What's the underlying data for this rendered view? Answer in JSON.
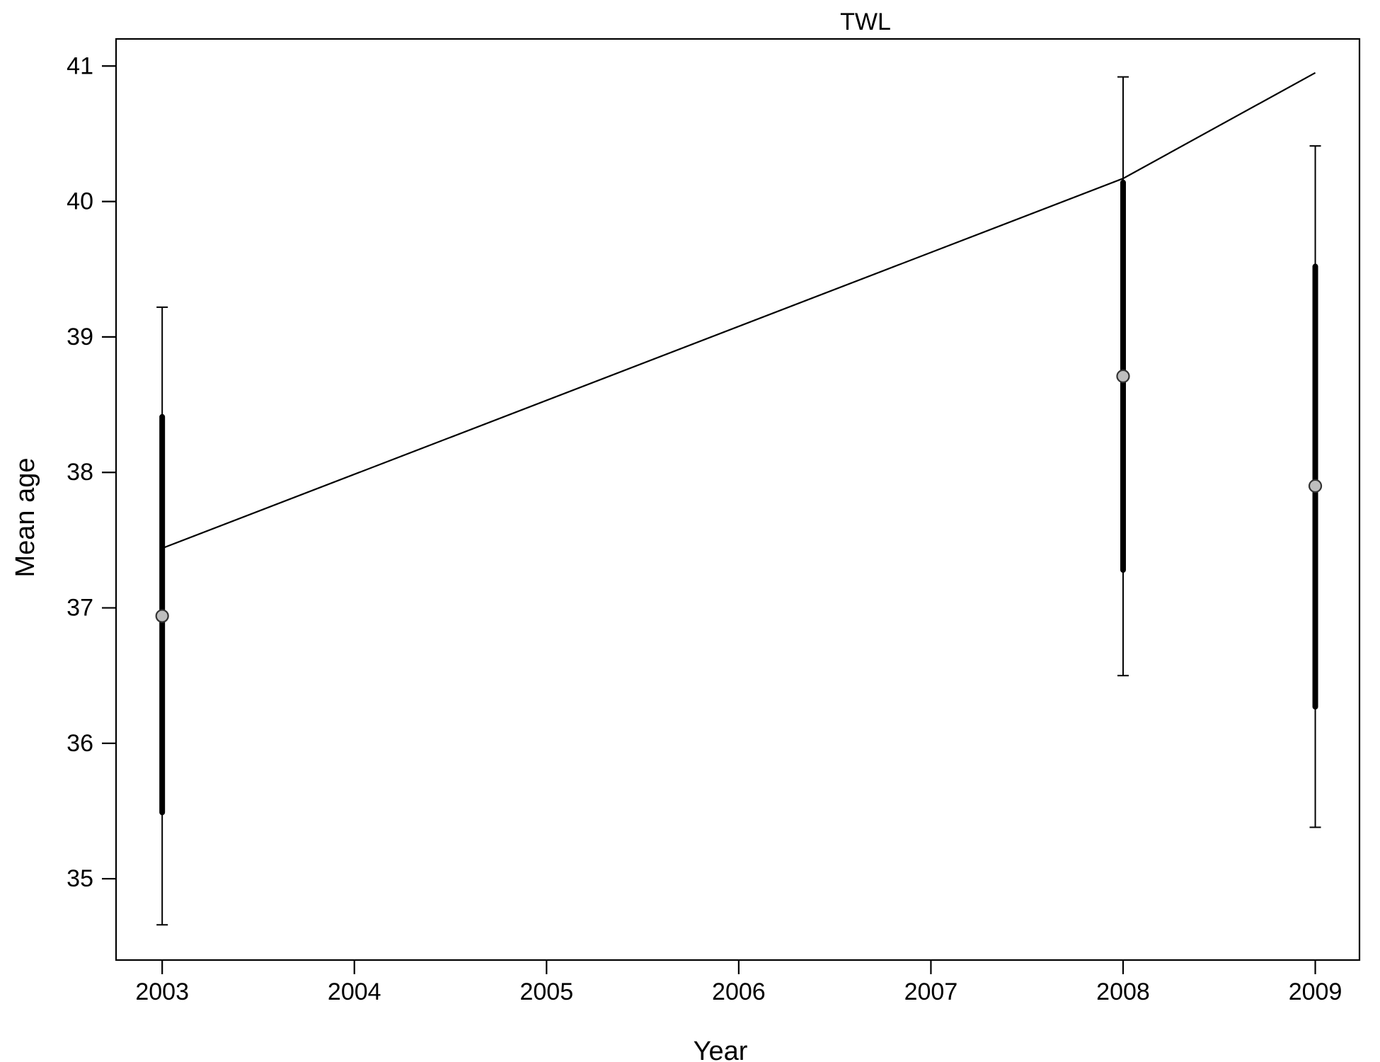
{
  "chart_data": {
    "type": "scatter",
    "title": "TWL",
    "xlabel": "Year",
    "ylabel": "Mean age",
    "x_ticks": [
      2003,
      2004,
      2005,
      2006,
      2007,
      2008,
      2009
    ],
    "y_ticks": [
      35,
      36,
      37,
      38,
      39,
      40,
      41
    ],
    "xlim": [
      2002.76,
      2009.23
    ],
    "ylim": [
      34.4,
      41.2
    ],
    "grid": false,
    "observed": [
      {
        "x": 2003,
        "y": 36.94,
        "inner_low": 35.49,
        "inner_high": 38.41,
        "outer_low": 34.66,
        "outer_high": 39.22
      },
      {
        "x": 2008,
        "y": 38.71,
        "inner_low": 37.28,
        "inner_high": 40.14,
        "outer_low": 36.5,
        "outer_high": 40.92
      },
      {
        "x": 2009,
        "y": 37.9,
        "inner_low": 36.27,
        "inner_high": 39.52,
        "outer_low": 35.38,
        "outer_high": 40.41
      }
    ],
    "expected": {
      "x": [
        2003,
        2008,
        2009
      ],
      "y": [
        37.44,
        40.17,
        40.95
      ]
    },
    "colors": {
      "line": "#000000",
      "point_fill": "#bebebe",
      "point_stroke": "#333333"
    }
  }
}
